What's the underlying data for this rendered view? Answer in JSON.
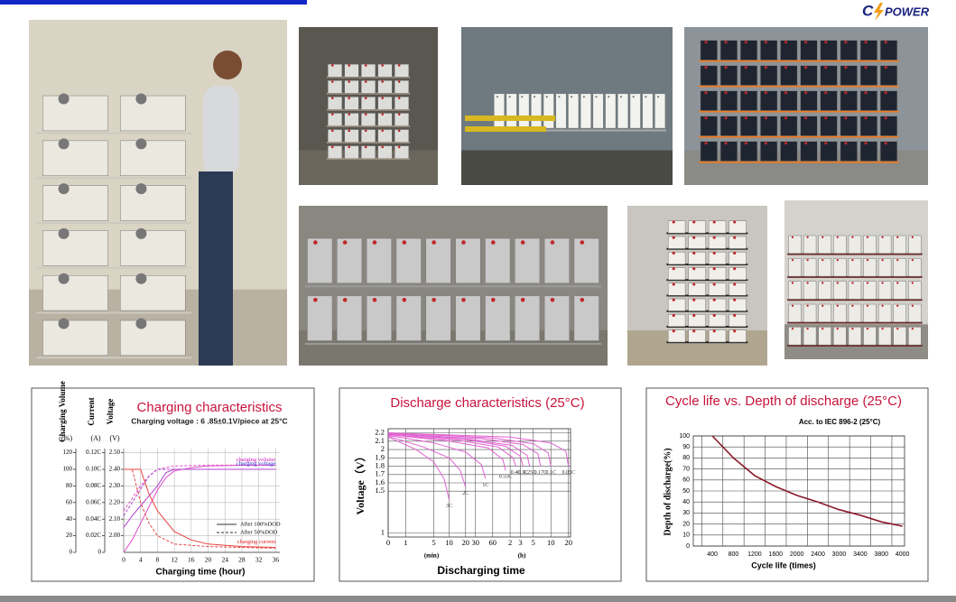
{
  "logo": {
    "left": "C",
    "right": "POWER"
  },
  "charts": [
    {
      "type": "line",
      "title": "Charging characteristics",
      "subtitle": "Charging voltage : 6 .85±0.1V/piece at 25°C",
      "x_label": "Charging time (hour)",
      "xlim": [
        0,
        37
      ],
      "xticks": [
        0,
        4,
        8,
        12,
        16,
        20,
        24,
        28,
        32,
        36
      ],
      "grid": true,
      "axes": [
        {
          "label": "Charging Volume",
          "unit": "(%)",
          "ylim": [
            0,
            125
          ],
          "yticks": [
            0,
            20,
            40,
            60,
            80,
            100,
            120
          ]
        },
        {
          "label": "Current",
          "unit": "(A)",
          "ylim": [
            0,
            0.125
          ],
          "yticks": [
            0,
            {
              "value": 0.02,
              "label": "0.02C"
            },
            {
              "value": 0.04,
              "label": "0.04C"
            },
            {
              "value": 0.06,
              "label": "0.06C"
            },
            {
              "value": 0.08,
              "label": "0.08C"
            },
            {
              "value": 0.1,
              "label": "0.10C"
            },
            {
              "value": 0.12,
              "label": "0.12C"
            }
          ]
        },
        {
          "label": "Voltage",
          "unit": "(V)",
          "ylim": [
            1.9,
            2.525
          ],
          "yticks": [
            {
              "value": 2,
              "label": "2.00"
            },
            {
              "value": 2.1,
              "label": "2.10"
            },
            {
              "value": 2.2,
              "label": "2.20"
            },
            {
              "value": 2.3,
              "label": "2.30"
            },
            {
              "value": 2.4,
              "label": "2.40"
            },
            {
              "value": 2.5,
              "label": "2.50"
            }
          ]
        }
      ],
      "legend": [
        {
          "label": "After 100%DOD",
          "dash": false
        },
        {
          "label": "After 50%DOD",
          "dash": true
        }
      ],
      "series": [
        {
          "name": "charging volume",
          "color": "#e04cc8",
          "label_color": "#d020c0",
          "axis": 0,
          "legend": 0,
          "x": [
            0,
            2,
            4,
            6,
            8,
            10,
            12,
            16,
            20,
            28,
            36
          ],
          "values": [
            0,
            15,
            35,
            55,
            75,
            90,
            98,
            102,
            104,
            105,
            105
          ]
        },
        {
          "color": "#e04cc8",
          "axis": 0,
          "legend": 1,
          "x": [
            0,
            2,
            4,
            6,
            8,
            12,
            20,
            36
          ],
          "values": [
            50,
            65,
            80,
            92,
            100,
            104,
            105,
            105
          ]
        },
        {
          "name": "charging voltage",
          "color": "#b040d0",
          "label_color": "#2a2ad0",
          "axis": 2,
          "legend": 0,
          "x": [
            0,
            2,
            4,
            6,
            8,
            10,
            12,
            36
          ],
          "values": [
            2.05,
            2.12,
            2.18,
            2.24,
            2.3,
            2.38,
            2.4,
            2.4
          ]
        },
        {
          "color": "#b040d0",
          "axis": 2,
          "legend": 1,
          "x": [
            0,
            2,
            4,
            6,
            8,
            36
          ],
          "values": [
            2.12,
            2.2,
            2.28,
            2.36,
            2.4,
            2.4
          ]
        },
        {
          "name": "charging current",
          "color": "#e8403c",
          "label_color": "#e02020",
          "axis": 1,
          "legend": 0,
          "x": [
            0,
            4,
            6,
            8,
            12,
            16,
            20,
            28,
            36
          ],
          "values": [
            0.1,
            0.1,
            0.07,
            0.05,
            0.025,
            0.015,
            0.01,
            0.007,
            0.006
          ]
        },
        {
          "color": "#e8403c",
          "axis": 1,
          "legend": 1,
          "x": [
            0,
            2,
            4,
            6,
            8,
            12,
            20,
            36
          ],
          "values": [
            0.1,
            0.1,
            0.06,
            0.035,
            0.02,
            0.01,
            0.007,
            0.005
          ]
        }
      ]
    },
    {
      "type": "line",
      "title": "Discharge characteristics (25°C)",
      "y_label": "Voltage（V）",
      "x_label": "Discharging time",
      "x_units": [
        "(min)",
        "(h)"
      ],
      "x_scale": "log1p",
      "xlim": [
        0,
        1300
      ],
      "xticks": [
        0,
        1,
        5,
        10,
        20,
        30,
        60,
        {
          "value": 120,
          "label": "2"
        },
        {
          "value": 180,
          "label": "3"
        },
        {
          "value": 300,
          "label": "5"
        },
        {
          "value": 600,
          "label": "10"
        },
        {
          "value": 1200,
          "label": "20"
        }
      ],
      "ylim": [
        0.95,
        2.25
      ],
      "yticks": [
        1.0,
        1.5,
        1.6,
        1.7,
        1.8,
        1.9,
        2.0,
        2.1,
        2.2
      ],
      "grid": true,
      "color": "#e060d0",
      "series": [
        {
          "name": "3C",
          "x": [
            0,
            2,
            5,
            8,
            10
          ],
          "values": [
            2.15,
            2.0,
            1.85,
            1.65,
            1.4
          ]
        },
        {
          "name": "2C",
          "x": [
            0,
            3,
            10,
            16,
            20
          ],
          "values": [
            2.16,
            2.03,
            1.9,
            1.75,
            1.55
          ]
        },
        {
          "name": "1C",
          "x": [
            0,
            5,
            20,
            38,
            45
          ],
          "values": [
            2.17,
            2.08,
            1.97,
            1.82,
            1.65
          ]
        },
        {
          "name": "0.55C",
          "x": [
            0,
            10,
            50,
            90,
            100
          ],
          "values": [
            2.18,
            2.1,
            2.02,
            1.88,
            1.75
          ]
        },
        {
          "name": "0.4C",
          "x": [
            0,
            15,
            75,
            135,
            150
          ],
          "values": [
            2.18,
            2.11,
            2.03,
            1.9,
            1.8
          ]
        },
        {
          "name": "0.3C",
          "x": [
            0,
            20,
            100,
            180,
            200
          ],
          "values": [
            2.19,
            2.12,
            2.04,
            1.92,
            1.8
          ]
        },
        {
          "name": "0.25C",
          "x": [
            0,
            25,
            130,
            235,
            260
          ],
          "values": [
            2.19,
            2.12,
            2.05,
            1.93,
            1.8
          ]
        },
        {
          "name": "0.17C",
          "x": [
            0,
            40,
            200,
            360,
            400
          ],
          "values": [
            2.19,
            2.13,
            2.06,
            1.95,
            1.8
          ]
        },
        {
          "name": "0.1C",
          "x": [
            0,
            60,
            300,
            540,
            600
          ],
          "values": [
            2.2,
            2.14,
            2.07,
            1.96,
            1.8
          ]
        },
        {
          "name": "0.05C",
          "x": [
            0,
            120,
            600,
            1080,
            1200
          ],
          "values": [
            2.2,
            2.15,
            2.08,
            1.98,
            1.8
          ]
        }
      ]
    },
    {
      "type": "line",
      "title": "Cycle life vs. Depth of discharge (25°C)",
      "note": "Acc. to IEC 896-2 (25°C)",
      "y_label": "Depth of discharge(%)",
      "x_label": "Cycle life (times)",
      "categories": [
        "400",
        "800",
        "1200",
        "1600",
        "2000",
        "2400",
        "3000",
        "3400",
        "3800",
        "4000"
      ],
      "values": [
        100,
        80,
        64,
        54,
        46,
        40,
        33,
        28,
        22,
        18
      ],
      "ylim": [
        0,
        100
      ],
      "yticks": [
        0,
        10,
        20,
        30,
        40,
        50,
        60,
        70,
        80,
        90,
        100
      ],
      "grid": true,
      "color": "#8b1a2a"
    }
  ]
}
